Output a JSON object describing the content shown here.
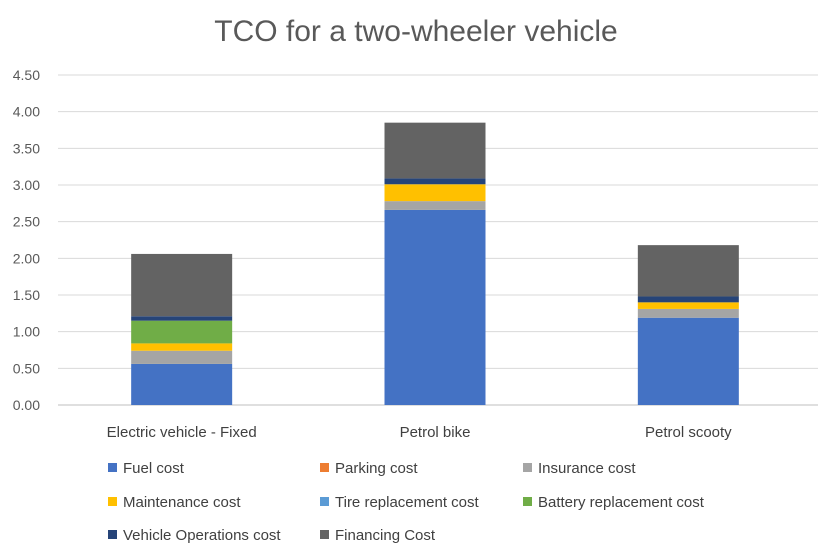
{
  "chart_data": {
    "type": "bar",
    "stacked": true,
    "title": "TCO for a two-wheeler vehicle",
    "xlabel": "",
    "ylabel": "",
    "ylim": [
      0,
      4.5
    ],
    "ytick_step": 0.5,
    "ytick_labels": [
      "0.00",
      "0.50",
      "1.00",
      "1.50",
      "2.00",
      "2.50",
      "3.00",
      "3.50",
      "4.00",
      "4.50"
    ],
    "grid": true,
    "legend_position": "bottom",
    "categories": [
      "Electric vehicle - Fixed",
      "Petrol bike",
      "Petrol scooty"
    ],
    "series": [
      {
        "name": "Fuel cost",
        "color": "#4472c4",
        "values": [
          0.56,
          2.66,
          1.19
        ]
      },
      {
        "name": "Parking cost",
        "color": "#ed7d31",
        "values": [
          0,
          0,
          0
        ]
      },
      {
        "name": "Insurance cost",
        "color": "#a5a5a5",
        "values": [
          0.18,
          0.12,
          0.12
        ]
      },
      {
        "name": "Maintenance cost",
        "color": "#ffc000",
        "values": [
          0.1,
          0.23,
          0.09
        ]
      },
      {
        "name": "Tire replacement cost",
        "color": "#5b9bd5",
        "values": [
          0,
          0,
          0
        ]
      },
      {
        "name": "Battery replacement cost",
        "color": "#70ad47",
        "values": [
          0.31,
          0,
          0
        ]
      },
      {
        "name": "Vehicle Operations cost",
        "color": "#264478",
        "values": [
          0.06,
          0.08,
          0.08
        ]
      },
      {
        "name": "Financing Cost",
        "color": "#636363",
        "values": [
          0.85,
          0.76,
          0.7
        ]
      }
    ]
  }
}
